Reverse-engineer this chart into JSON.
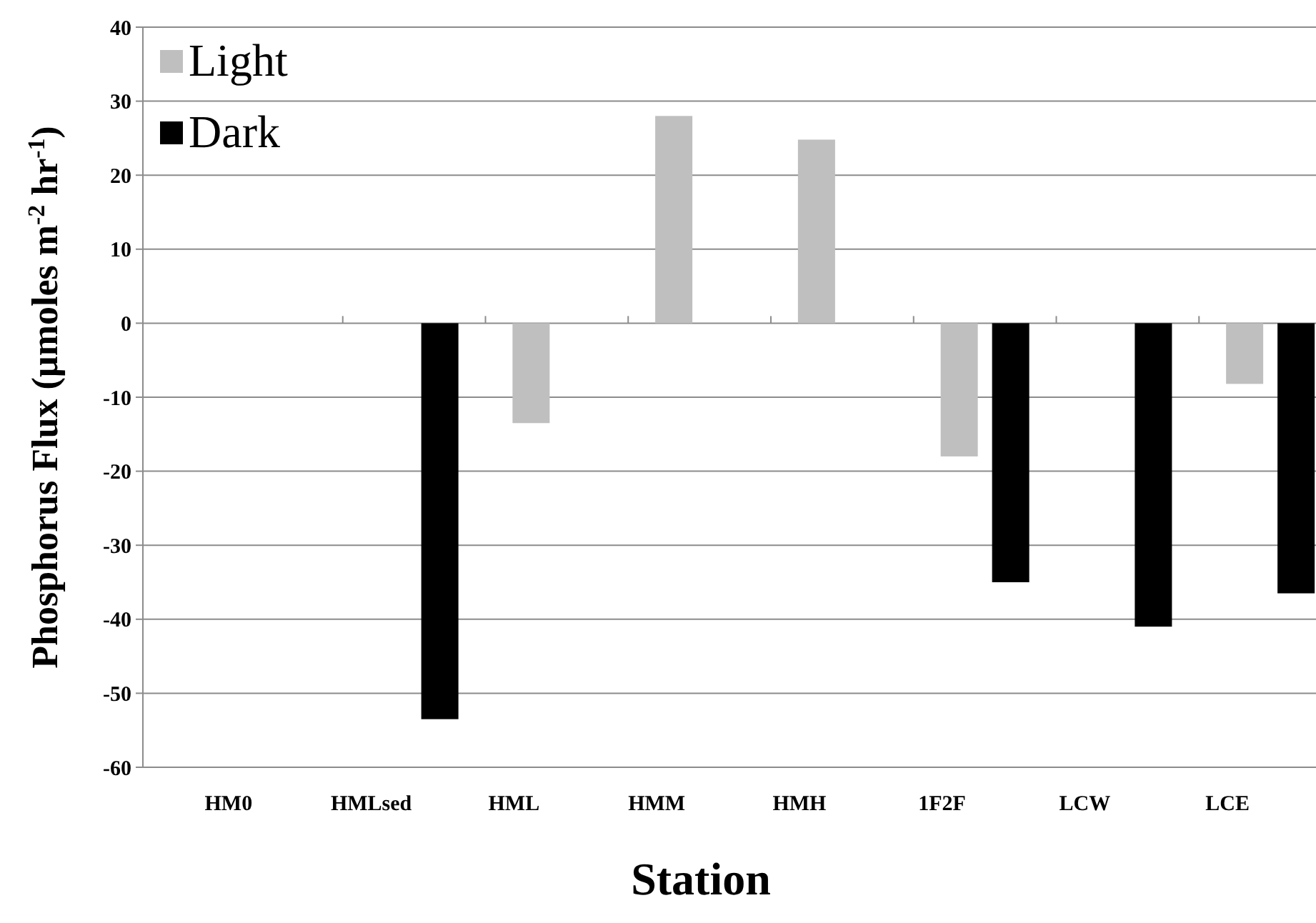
{
  "chart_data": {
    "type": "bar",
    "xlabel": "Station",
    "ylabel": "Phosphorus Flux (µmoles m$^{-2}$ hr$^{-1}$)",
    "categories": [
      "HM0",
      "HMLsed",
      "HML",
      "HMM",
      "HMH",
      "1F2F",
      "LCW",
      "LCE"
    ],
    "series": [
      {
        "name": "Light",
        "color": "#bfbfbf",
        "values": [
          null,
          null,
          -13.5,
          28,
          24.8,
          -18,
          null,
          -8.2
        ]
      },
      {
        "name": "Dark",
        "color": "#000000",
        "values": [
          null,
          -53.5,
          null,
          null,
          null,
          -35,
          -41,
          -36.5
        ]
      }
    ],
    "ylim": [
      -60,
      40
    ],
    "yticks": [
      -60,
      -50,
      -40,
      -30,
      -20,
      -10,
      0,
      10,
      20,
      30,
      40
    ],
    "grid": "y",
    "legend": "top left"
  }
}
